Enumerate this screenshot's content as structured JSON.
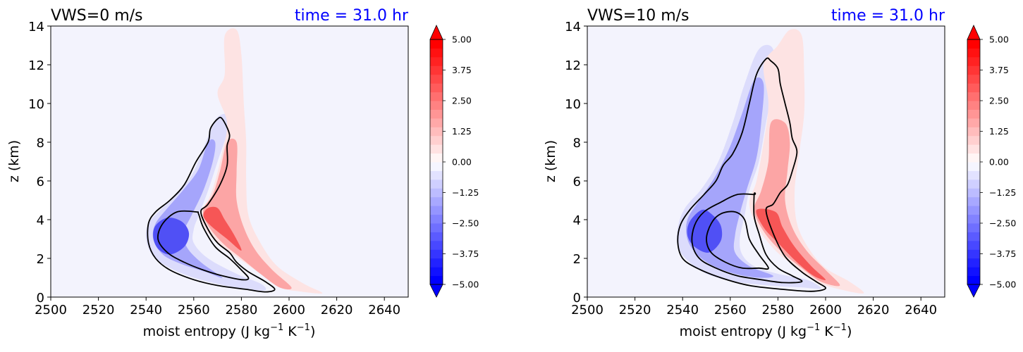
{
  "chart_data": [
    {
      "type": "contour",
      "title_left": "VWS=0 m/s",
      "title_right": "time = 31.0 hr",
      "title_right_color": "#0000ff",
      "xlabel": "moist entropy (J kg$^{-1}$ K$^{-1}$)",
      "xlabel_main": "moist entropy (J kg",
      "xlabel_sup1": "−1",
      "xlabel_mid": " K",
      "xlabel_sup2": "−1",
      "xlabel_end": ")",
      "ylabel": "z (km)",
      "xlim": [
        2500,
        2650
      ],
      "ylim": [
        0,
        14
      ],
      "xticks": [
        "2500",
        "2520",
        "2540",
        "2560",
        "2580",
        "2600",
        "2620",
        "2640"
      ],
      "yticks": [
        "0",
        "2",
        "4",
        "6",
        "8",
        "10",
        "12",
        "14"
      ],
      "background_color": "#f3f3fd",
      "blue_outer": [
        [
          2570,
          9.3
        ],
        [
          2567,
          8.6
        ],
        [
          2560,
          6.5
        ],
        [
          2553,
          5.3
        ],
        [
          2546,
          4.5
        ],
        [
          2541,
          3.8
        ],
        [
          2540,
          3.0
        ],
        [
          2543,
          2.1
        ],
        [
          2550,
          1.5
        ],
        [
          2560,
          1.0
        ],
        [
          2573,
          0.6
        ],
        [
          2583,
          0.4
        ],
        [
          2590,
          0.35
        ],
        [
          2588,
          0.7
        ],
        [
          2578,
          1.2
        ],
        [
          2566,
          2.0
        ],
        [
          2560,
          2.8
        ],
        [
          2560,
          3.5
        ],
        [
          2562,
          4.2
        ],
        [
          2566,
          5.5
        ],
        [
          2570,
          7.0
        ],
        [
          2574,
          8.5
        ],
        [
          2574,
          9.4
        ]
      ],
      "blue_core": [
        [
          2566,
          8.0
        ],
        [
          2562,
          6.6
        ],
        [
          2556,
          5.6
        ],
        [
          2549,
          4.6
        ],
        [
          2544,
          3.8
        ],
        [
          2543,
          3.0
        ],
        [
          2547,
          2.2
        ],
        [
          2555,
          1.7
        ],
        [
          2565,
          1.3
        ],
        [
          2572,
          1.0
        ],
        [
          2563,
          1.8
        ],
        [
          2557,
          2.6
        ],
        [
          2556,
          3.4
        ],
        [
          2559,
          4.2
        ],
        [
          2564,
          5.5
        ],
        [
          2568,
          7.0
        ],
        [
          2569,
          8.0
        ]
      ],
      "blue_dark": [
        [
          2549,
          4.1
        ],
        [
          2544,
          3.7
        ],
        [
          2543,
          3.1
        ],
        [
          2545,
          2.5
        ],
        [
          2550,
          2.2
        ],
        [
          2556,
          2.6
        ],
        [
          2558,
          3.3
        ],
        [
          2555,
          3.9
        ]
      ],
      "red_outer": [
        [
          2570,
          10.5
        ],
        [
          2574,
          9.0
        ],
        [
          2572,
          7.5
        ],
        [
          2569,
          6.0
        ],
        [
          2566,
          5.0
        ],
        [
          2563,
          4.4
        ],
        [
          2565,
          3.5
        ],
        [
          2572,
          2.6
        ],
        [
          2580,
          1.9
        ],
        [
          2588,
          1.2
        ],
        [
          2596,
          0.5
        ],
        [
          2604,
          0.3
        ],
        [
          2614,
          0.2
        ],
        [
          2606,
          0.7
        ],
        [
          2595,
          1.6
        ],
        [
          2588,
          2.8
        ],
        [
          2583,
          4.2
        ],
        [
          2582,
          6.0
        ],
        [
          2582,
          8.0
        ],
        [
          2581,
          10.0
        ],
        [
          2580,
          12.5
        ],
        [
          2578,
          13.8
        ],
        [
          2573,
          13.5
        ],
        [
          2573,
          11.5
        ]
      ],
      "red_core": [
        [
          2574,
          8.0
        ],
        [
          2571,
          6.5
        ],
        [
          2568,
          5.3
        ],
        [
          2564,
          4.5
        ],
        [
          2566,
          3.7
        ],
        [
          2572,
          2.8
        ],
        [
          2580,
          2.0
        ],
        [
          2588,
          1.2
        ],
        [
          2596,
          0.5
        ],
        [
          2601,
          0.5
        ],
        [
          2593,
          1.4
        ],
        [
          2586,
          2.4
        ],
        [
          2581,
          3.6
        ],
        [
          2578,
          5.0
        ],
        [
          2578,
          6.5
        ],
        [
          2578,
          8.0
        ]
      ],
      "red_dark": [
        [
          2566,
          4.6
        ],
        [
          2564,
          4.2
        ],
        [
          2567,
          3.7
        ],
        [
          2574,
          3.0
        ],
        [
          2580,
          2.4
        ],
        [
          2577,
          3.2
        ],
        [
          2573,
          4.0
        ],
        [
          2570,
          4.6
        ]
      ],
      "contour_outer": [
        [
          2570,
          9.2
        ],
        [
          2567,
          8.7
        ],
        [
          2566,
          8.0
        ],
        [
          2561,
          7.0
        ],
        [
          2556,
          5.8
        ],
        [
          2550,
          5.0
        ],
        [
          2544,
          4.4
        ],
        [
          2541,
          3.8
        ],
        [
          2541,
          2.8
        ],
        [
          2544,
          2.0
        ],
        [
          2550,
          1.4
        ],
        [
          2560,
          0.9
        ],
        [
          2570,
          0.6
        ],
        [
          2582,
          0.4
        ],
        [
          2590,
          0.27
        ],
        [
          2594,
          0.4
        ],
        [
          2590,
          0.8
        ],
        [
          2583,
          1.3
        ],
        [
          2578,
          1.8
        ],
        [
          2575,
          2.3
        ],
        [
          2570,
          2.8
        ],
        [
          2566,
          3.5
        ],
        [
          2563,
          4.4
        ],
        [
          2566,
          4.8
        ],
        [
          2571,
          5.8
        ],
        [
          2574,
          6.8
        ],
        [
          2574,
          7.8
        ],
        [
          2575,
          8.4
        ],
        [
          2572,
          9.2
        ]
      ],
      "contour_inner": [
        [
          2561,
          4.4
        ],
        [
          2553,
          4.4
        ],
        [
          2547,
          3.8
        ],
        [
          2545,
          3.0
        ],
        [
          2549,
          2.3
        ],
        [
          2556,
          1.8
        ],
        [
          2564,
          1.4
        ],
        [
          2572,
          1.1
        ],
        [
          2580,
          0.9
        ],
        [
          2583,
          0.97
        ],
        [
          2580,
          1.4
        ],
        [
          2575,
          2.0
        ],
        [
          2569,
          2.6
        ],
        [
          2564,
          3.6
        ],
        [
          2562,
          4.3
        ]
      ]
    },
    {
      "type": "contour",
      "title_left": "VWS=10 m/s",
      "title_right": "time = 31.0 hr",
      "title_right_color": "#0000ff",
      "xlabel": "moist entropy (J kg$^{-1}$ K$^{-1}$)",
      "xlabel_main": "moist entropy (J kg",
      "xlabel_sup1": "−1",
      "xlabel_mid": " K",
      "xlabel_sup2": "−1",
      "xlabel_end": ")",
      "ylabel": "z (km)",
      "xlim": [
        2500,
        2650
      ],
      "ylim": [
        0,
        14
      ],
      "xticks": [
        "2500",
        "2520",
        "2540",
        "2560",
        "2580",
        "2600",
        "2620",
        "2640"
      ],
      "yticks": [
        "0",
        "2",
        "4",
        "6",
        "8",
        "10",
        "12",
        "14"
      ],
      "background_color": "#f3f3fd",
      "blue_outer": [
        [
          2572,
          12.8
        ],
        [
          2566,
          11.0
        ],
        [
          2561,
          9.0
        ],
        [
          2555,
          7.0
        ],
        [
          2548,
          5.6
        ],
        [
          2541,
          4.6
        ],
        [
          2538,
          3.6
        ],
        [
          2538,
          2.6
        ],
        [
          2542,
          1.9
        ],
        [
          2550,
          1.2
        ],
        [
          2562,
          0.8
        ],
        [
          2576,
          0.6
        ],
        [
          2590,
          0.5
        ],
        [
          2598,
          0.45
        ],
        [
          2592,
          0.9
        ],
        [
          2580,
          1.2
        ],
        [
          2570,
          1.6
        ],
        [
          2565,
          2.2
        ],
        [
          2564,
          3.0
        ],
        [
          2566,
          4.2
        ],
        [
          2568,
          5.5
        ],
        [
          2572,
          7.0
        ],
        [
          2575,
          9.0
        ],
        [
          2578,
          11.0
        ],
        [
          2578,
          12.8
        ]
      ],
      "blue_core": [
        [
          2570,
          11.2
        ],
        [
          2565,
          9.5
        ],
        [
          2560,
          7.8
        ],
        [
          2554,
          6.3
        ],
        [
          2547,
          5.0
        ],
        [
          2542,
          4.0
        ],
        [
          2542,
          3.0
        ],
        [
          2546,
          2.2
        ],
        [
          2553,
          1.6
        ],
        [
          2562,
          1.2
        ],
        [
          2572,
          1.0
        ],
        [
          2578,
          1.1
        ],
        [
          2568,
          1.6
        ],
        [
          2562,
          2.3
        ],
        [
          2562,
          3.2
        ],
        [
          2564,
          4.3
        ],
        [
          2567,
          5.6
        ],
        [
          2571,
          7.2
        ],
        [
          2573,
          9.0
        ],
        [
          2574,
          11.0
        ]
      ],
      "blue_dark": [
        [
          2548,
          4.5
        ],
        [
          2543,
          3.9
        ],
        [
          2542,
          3.2
        ],
        [
          2545,
          2.6
        ],
        [
          2551,
          2.3
        ],
        [
          2556,
          2.9
        ],
        [
          2556,
          3.7
        ],
        [
          2552,
          4.3
        ]
      ],
      "red_outer": [
        [
          2574,
          12.0
        ],
        [
          2576,
          10.0
        ],
        [
          2574,
          8.0
        ],
        [
          2571,
          6.0
        ],
        [
          2568,
          4.8
        ],
        [
          2572,
          3.5
        ],
        [
          2579,
          2.4
        ],
        [
          2588,
          1.5
        ],
        [
          2596,
          0.8
        ],
        [
          2606,
          0.4
        ],
        [
          2616,
          0.2
        ],
        [
          2610,
          0.8
        ],
        [
          2600,
          1.5
        ],
        [
          2593,
          2.5
        ],
        [
          2588,
          3.8
        ],
        [
          2587,
          5.5
        ],
        [
          2589,
          7.5
        ],
        [
          2591,
          9.5
        ],
        [
          2591,
          11.5
        ],
        [
          2590,
          13.5
        ],
        [
          2585,
          13.8
        ],
        [
          2580,
          13.0
        ]
      ],
      "red_core": [
        [
          2577,
          9.0
        ],
        [
          2576,
          7.0
        ],
        [
          2573,
          5.5
        ],
        [
          2570,
          4.5
        ],
        [
          2574,
          3.4
        ],
        [
          2581,
          2.4
        ],
        [
          2590,
          1.5
        ],
        [
          2598,
          0.8
        ],
        [
          2606,
          0.6
        ],
        [
          2600,
          1.4
        ],
        [
          2592,
          2.4
        ],
        [
          2586,
          3.6
        ],
        [
          2583,
          5.0
        ],
        [
          2584,
          6.5
        ],
        [
          2585,
          8.0
        ],
        [
          2583,
          9.0
        ]
      ],
      "red_dark": [
        [
          2571,
          4.5
        ],
        [
          2574,
          3.6
        ],
        [
          2580,
          2.8
        ],
        [
          2588,
          1.8
        ],
        [
          2595,
          1.1
        ],
        [
          2600,
          0.9
        ],
        [
          2594,
          1.6
        ],
        [
          2587,
          2.6
        ],
        [
          2582,
          3.6
        ],
        [
          2579,
          4.4
        ]
      ],
      "contour_outer": [
        [
          2575,
          12.3
        ],
        [
          2571,
          11.5
        ],
        [
          2568,
          10.0
        ],
        [
          2565,
          8.5
        ],
        [
          2561,
          7.4
        ],
        [
          2557,
          6.8
        ],
        [
          2554,
          6.0
        ],
        [
          2549,
          5.3
        ],
        [
          2543,
          4.5
        ],
        [
          2539,
          3.7
        ],
        [
          2538,
          2.8
        ],
        [
          2540,
          2.0
        ],
        [
          2546,
          1.5
        ],
        [
          2556,
          1.0
        ],
        [
          2568,
          0.6
        ],
        [
          2582,
          0.4
        ],
        [
          2594,
          0.3
        ],
        [
          2600,
          0.45
        ],
        [
          2596,
          0.8
        ],
        [
          2590,
          1.3
        ],
        [
          2583,
          2.1
        ],
        [
          2578,
          3.3
        ],
        [
          2575,
          4.5
        ],
        [
          2578,
          4.8
        ],
        [
          2581,
          5.4
        ],
        [
          2584,
          5.8
        ],
        [
          2586,
          6.5
        ],
        [
          2588,
          7.5
        ],
        [
          2586,
          8.2
        ],
        [
          2585,
          9.0
        ],
        [
          2583,
          10.0
        ],
        [
          2581,
          11.0
        ],
        [
          2580,
          11.8
        ],
        [
          2577,
          12.2
        ]
      ],
      "contour_mid": [
        [
          2570,
          5.3
        ],
        [
          2563,
          5.3
        ],
        [
          2556,
          4.9
        ],
        [
          2549,
          4.4
        ],
        [
          2545,
          3.7
        ],
        [
          2544,
          2.8
        ],
        [
          2547,
          2.0
        ],
        [
          2554,
          1.5
        ],
        [
          2563,
          1.1
        ],
        [
          2573,
          0.9
        ],
        [
          2582,
          0.75
        ],
        [
          2590,
          0.8
        ],
        [
          2586,
          1.1
        ],
        [
          2580,
          1.5
        ],
        [
          2575,
          2.2
        ],
        [
          2572,
          3.3
        ],
        [
          2570,
          4.2
        ],
        [
          2570,
          5.3
        ]
      ],
      "contour_inner": [
        [
          2562,
          4.4
        ],
        [
          2556,
          4.3
        ],
        [
          2552,
          3.8
        ],
        [
          2550,
          3.0
        ],
        [
          2552,
          2.3
        ],
        [
          2558,
          1.8
        ],
        [
          2565,
          1.5
        ],
        [
          2572,
          1.5
        ],
        [
          2576,
          1.5
        ],
        [
          2572,
          2.2
        ],
        [
          2568,
          3.0
        ],
        [
          2566,
          4.0
        ]
      ]
    }
  ],
  "colorbars": [
    {
      "ticks": [
        "5.00",
        "3.75",
        "2.50",
        "1.25",
        "0.00",
        "−1.25",
        "−2.50",
        "−3.75",
        "−5.00"
      ],
      "colors": [
        "#0000ff",
        "#1111ff",
        "#2222ff",
        "#3535ff",
        "#4848ff",
        "#5b5bff",
        "#6f6fff",
        "#8282ff",
        "#9595ff",
        "#a8a8ff",
        "#bcbcff",
        "#cfcfff",
        "#e2e2ff",
        "#f5f5ff",
        "#fff5f5",
        "#ffe2e2",
        "#ffcfcf",
        "#ffbcbc",
        "#ffa8a8",
        "#ff9595",
        "#ff8282",
        "#ff6f6f",
        "#ff5b5b",
        "#ff4848",
        "#ff3535",
        "#ff2222",
        "#ff1111",
        "#ff0000"
      ]
    },
    {
      "ticks": [
        "5.00",
        "3.75",
        "2.50",
        "1.25",
        "0.00",
        "−1.25",
        "−2.50",
        "−3.75",
        "−5.00"
      ],
      "colors": [
        "#0000ff",
        "#1111ff",
        "#2222ff",
        "#3535ff",
        "#4848ff",
        "#5b5bff",
        "#6f6fff",
        "#8282ff",
        "#9595ff",
        "#a8a8ff",
        "#bcbcff",
        "#cfcfff",
        "#e2e2ff",
        "#f5f5ff",
        "#fff5f5",
        "#ffe2e2",
        "#ffcfcf",
        "#ffbcbc",
        "#ffa8a8",
        "#ff9595",
        "#ff8282",
        "#ff6f6f",
        "#ff5b5b",
        "#ff4848",
        "#ff3535",
        "#ff2222",
        "#ff1111",
        "#ff0000"
      ]
    }
  ]
}
